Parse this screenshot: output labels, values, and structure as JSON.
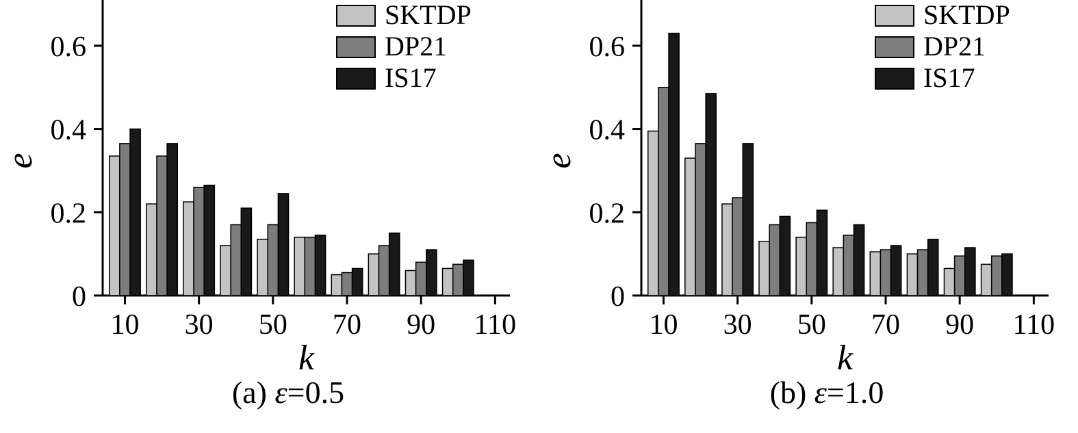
{
  "page": {
    "background": "#ffffff",
    "text_color": "#000000"
  },
  "colors": {
    "SKTDP": "#c3c3c3",
    "DP21": "#7d7d7d",
    "IS17": "#191919",
    "axis": "#000000"
  },
  "chart_data": [
    {
      "type": "bar",
      "title": "(a) ε=0.5",
      "caption_label": "(a) ",
      "caption_epsilon": "ε",
      "caption_value": "=0.5",
      "xlabel": "k",
      "ylabel": "e",
      "categories": [
        10,
        20,
        30,
        40,
        50,
        60,
        70,
        80,
        90,
        100
      ],
      "x_ticks": [
        10,
        30,
        50,
        70,
        90,
        110
      ],
      "y_ticks": [
        0,
        0.2,
        0.4,
        0.6
      ],
      "xlim": [
        4,
        114
      ],
      "ylim": [
        0,
        0.7
      ],
      "grid": false,
      "legend_position": "upper right",
      "series": [
        {
          "name": "SKTDP",
          "color": "#c3c3c3",
          "values": [
            0.335,
            0.22,
            0.225,
            0.12,
            0.135,
            0.14,
            0.05,
            0.1,
            0.06,
            0.065
          ]
        },
        {
          "name": "DP21",
          "color": "#7d7d7d",
          "values": [
            0.365,
            0.335,
            0.26,
            0.17,
            0.17,
            0.14,
            0.055,
            0.12,
            0.08,
            0.075
          ]
        },
        {
          "name": "IS17",
          "color": "#191919",
          "values": [
            0.4,
            0.365,
            0.265,
            0.21,
            0.245,
            0.145,
            0.065,
            0.15,
            0.11,
            0.085
          ]
        }
      ]
    },
    {
      "type": "bar",
      "title": "(b) ε=1.0",
      "caption_label": "(b) ",
      "caption_epsilon": "ε",
      "caption_value": "=1.0",
      "xlabel": "k",
      "ylabel": "e",
      "categories": [
        10,
        20,
        30,
        40,
        50,
        60,
        70,
        80,
        90,
        100
      ],
      "x_ticks": [
        10,
        30,
        50,
        70,
        90,
        110
      ],
      "y_ticks": [
        0,
        0.2,
        0.4,
        0.6
      ],
      "xlim": [
        4,
        114
      ],
      "ylim": [
        0,
        0.7
      ],
      "grid": false,
      "legend_position": "upper right",
      "series": [
        {
          "name": "SKTDP",
          "color": "#c3c3c3",
          "values": [
            0.395,
            0.33,
            0.22,
            0.13,
            0.14,
            0.115,
            0.105,
            0.1,
            0.065,
            0.075
          ]
        },
        {
          "name": "DP21",
          "color": "#7d7d7d",
          "values": [
            0.5,
            0.365,
            0.235,
            0.17,
            0.175,
            0.145,
            0.11,
            0.11,
            0.095,
            0.095
          ]
        },
        {
          "name": "IS17",
          "color": "#191919",
          "values": [
            0.63,
            0.485,
            0.365,
            0.19,
            0.205,
            0.17,
            0.12,
            0.135,
            0.115,
            0.1
          ]
        }
      ]
    }
  ]
}
